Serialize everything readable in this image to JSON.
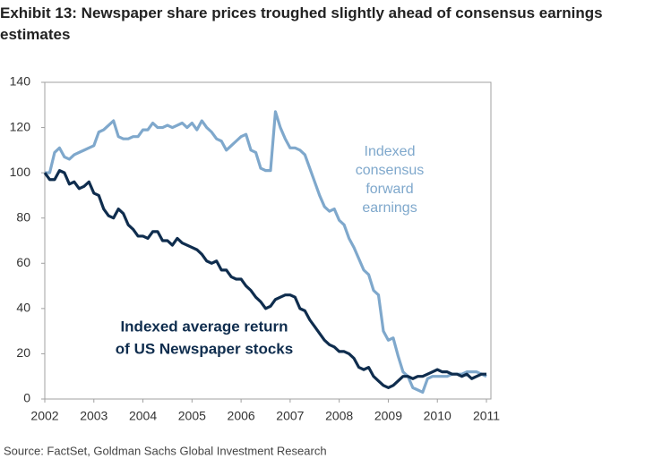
{
  "chart_data": {
    "type": "line",
    "title": "Exhibit 13: Newspaper share prices troughed slightly ahead of consensus earnings estimates",
    "source": "Source: FactSet, Goldman Sachs Global Investment Research",
    "x": [
      2002.0,
      2002.1,
      2002.2,
      2002.3,
      2002.4,
      2002.5,
      2002.6,
      2002.7,
      2002.8,
      2002.9,
      2003.0,
      2003.1,
      2003.2,
      2003.3,
      2003.4,
      2003.5,
      2003.6,
      2003.7,
      2003.8,
      2003.9,
      2004.0,
      2004.1,
      2004.2,
      2004.3,
      2004.4,
      2004.5,
      2004.6,
      2004.7,
      2004.8,
      2004.9,
      2005.0,
      2005.1,
      2005.2,
      2005.3,
      2005.4,
      2005.5,
      2005.6,
      2005.7,
      2005.8,
      2005.9,
      2006.0,
      2006.1,
      2006.2,
      2006.3,
      2006.4,
      2006.5,
      2006.6,
      2006.7,
      2006.8,
      2006.9,
      2007.0,
      2007.1,
      2007.2,
      2007.3,
      2007.4,
      2007.5,
      2007.6,
      2007.7,
      2007.8,
      2007.9,
      2008.0,
      2008.1,
      2008.2,
      2008.3,
      2008.4,
      2008.5,
      2008.6,
      2008.7,
      2008.8,
      2008.9,
      2009.0,
      2009.1,
      2009.2,
      2009.3,
      2009.4,
      2009.5,
      2009.6,
      2009.7,
      2009.8,
      2009.9,
      2010.0,
      2010.1,
      2010.2,
      2010.3,
      2010.4,
      2010.5,
      2010.6,
      2010.7,
      2010.8,
      2010.9,
      2011.0
    ],
    "series": [
      {
        "color": "#7fa8cc",
        "values": [
          100,
          100,
          109,
          111,
          107,
          106,
          108,
          109,
          110,
          111,
          112,
          118,
          119,
          121,
          123,
          116,
          115,
          115,
          116,
          116,
          119,
          119,
          122,
          120,
          120,
          121,
          120,
          121,
          122,
          120,
          122,
          119,
          123,
          120,
          118,
          115,
          114,
          110,
          112,
          114,
          116,
          117,
          110,
          109,
          102,
          101,
          101,
          127,
          120,
          115,
          111,
          111,
          110,
          108,
          102,
          96,
          90,
          85,
          83,
          84,
          79,
          77,
          71,
          67,
          62,
          57,
          55,
          48,
          46,
          30,
          26,
          27,
          19,
          12,
          10,
          5,
          4,
          3,
          9,
          10,
          10,
          10,
          10,
          11,
          11,
          11,
          12,
          12,
          12,
          11,
          10
        ]
      },
      {
        "color": "#0f2d4e",
        "values": [
          100,
          97,
          97,
          101,
          100,
          95,
          96,
          93,
          94,
          96,
          91,
          90,
          84,
          81,
          80,
          84,
          82,
          77,
          75,
          72,
          72,
          71,
          74,
          74,
          70,
          70,
          68,
          71,
          69,
          68,
          67,
          66,
          64,
          61,
          60,
          61,
          57,
          57,
          54,
          53,
          53,
          50,
          48,
          45,
          43,
          40,
          41,
          44,
          45,
          46,
          46,
          45,
          40,
          39,
          35,
          32,
          29,
          26,
          24,
          23,
          21,
          21,
          20,
          18,
          14,
          13,
          14,
          10,
          8,
          6,
          5,
          6,
          8,
          10,
          10,
          9,
          10,
          10,
          11,
          12,
          13,
          12,
          12,
          11,
          11,
          10,
          11,
          9,
          10,
          11,
          11
        ]
      }
    ],
    "annotations": [
      {
        "lines": [
          "Indexed",
          "consensus",
          "forward",
          "earnings"
        ],
        "color": "#7fa8cc"
      },
      {
        "lines": [
          "Indexed average return",
          "of US Newspaper stocks"
        ],
        "color": "#0f2d4e"
      }
    ],
    "xlim": [
      2002,
      2011
    ],
    "xticks": [
      2002,
      2003,
      2004,
      2005,
      2006,
      2007,
      2008,
      2009,
      2010,
      2011
    ],
    "ylim": [
      0,
      140
    ],
    "yticks": [
      0,
      20,
      40,
      60,
      80,
      100,
      120,
      140
    ]
  }
}
